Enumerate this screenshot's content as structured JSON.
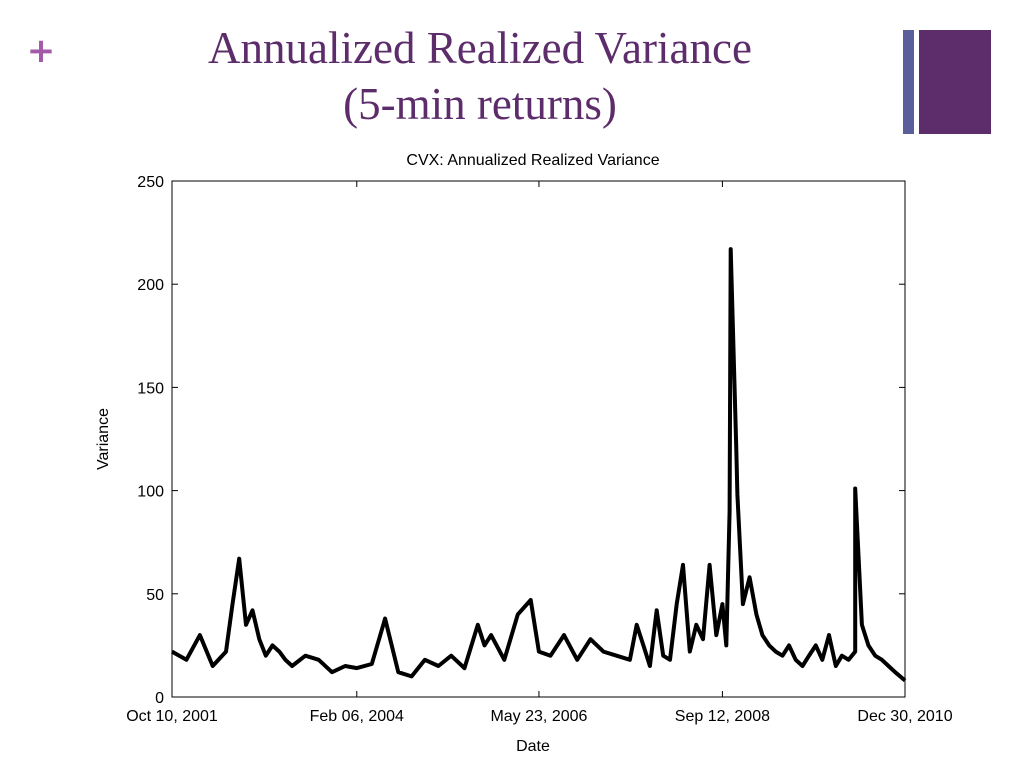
{
  "slide": {
    "bullet_symbol": "+",
    "title_line1": "Annualized Realized Variance",
    "title_line2": "(5-min returns)",
    "accent_color": "#5d2d6b",
    "bullet_color": "#a35aa8",
    "bar_color": "#5a5f9c"
  },
  "chart_data": {
    "type": "line",
    "title": "CVX: Annualized Realized Variance",
    "xlabel": "Date",
    "ylabel": "Variance",
    "ylim": [
      0,
      250
    ],
    "yticks": [
      0,
      50,
      100,
      150,
      200,
      250
    ],
    "xticks": [
      "Oct 10, 2001",
      "Feb 06, 2004",
      "May 23, 2006",
      "Sep 12, 2008",
      "Dec 30, 2010"
    ],
    "xlim": [
      "Oct 10, 2001",
      "Dec 30, 2010"
    ],
    "grid": false,
    "line_color": "#000000",
    "series": [
      {
        "x": [
          "Oct 10, 2001",
          "Dec 2001",
          "Feb 2002",
          "Apr 2002",
          "Jun 2002",
          "Jul 2002",
          "Aug 2002",
          "Sep 2002",
          "Oct 2002",
          "Nov 2002",
          "Dec 2002",
          "Jan 2003",
          "Feb 2003",
          "Mar 2003",
          "Apr 2003",
          "Jun 2003",
          "Aug 2003",
          "Oct 2003",
          "Dec 2003",
          "Feb 06, 2004",
          "Apr 2004",
          "Jun 2004",
          "Aug 2004",
          "Oct 2004",
          "Dec 2004",
          "Feb 2005",
          "Apr 2005",
          "Jun 2005",
          "Aug 2005",
          "Sep 2005",
          "Oct 2005",
          "Dec 2005",
          "Feb 2006",
          "Apr 2006",
          "May 23, 2006",
          "Jul 2006",
          "Sep 2006",
          "Nov 2006",
          "Jan 2007",
          "Mar 2007",
          "May 2007",
          "Jul 2007",
          "Aug 2007",
          "Sep 2007",
          "Oct 2007",
          "Nov 2007",
          "Dec 2007",
          "Jan 2008",
          "Feb 2008",
          "Mar 2008",
          "Apr 2008",
          "May 2008",
          "Jun 2008",
          "Jul 2008",
          "Aug 2008",
          "Sep 12, 2008",
          "Sep 30, 2008",
          "Oct 2008",
          "Oct 20, 2008",
          "Nov 2008",
          "Nov 20, 2008",
          "Dec 2008",
          "Jan 2009",
          "Feb 2009",
          "Mar 2009",
          "Apr 2009",
          "May 2009",
          "Jun 2009",
          "Jul 2009",
          "Aug 2009",
          "Sep 2009",
          "Oct 2009",
          "Nov 2009",
          "Dec 2009",
          "Jan 2010",
          "Feb 2010",
          "Mar 2010",
          "Apr 2010",
          "May 2010",
          "May 15, 2010",
          "Jun 2010",
          "Jul 2010",
          "Aug 2010",
          "Sep 2010",
          "Oct 2010",
          "Nov 2010",
          "Dec 30, 2010"
        ],
        "y": [
          22,
          18,
          30,
          15,
          22,
          45,
          67,
          35,
          42,
          28,
          20,
          25,
          22,
          18,
          15,
          20,
          18,
          12,
          15,
          14,
          16,
          38,
          12,
          10,
          18,
          15,
          20,
          14,
          35,
          25,
          30,
          18,
          40,
          47,
          22,
          20,
          30,
          18,
          28,
          22,
          20,
          18,
          35,
          25,
          15,
          42,
          20,
          18,
          45,
          64,
          22,
          35,
          28,
          64,
          30,
          45,
          25,
          90,
          217,
          120,
          98,
          45,
          58,
          40,
          30,
          25,
          22,
          20,
          25,
          18,
          15,
          20,
          25,
          18,
          30,
          15,
          20,
          18,
          22,
          101,
          35,
          25,
          20,
          18,
          15,
          12,
          8
        ]
      }
    ]
  }
}
